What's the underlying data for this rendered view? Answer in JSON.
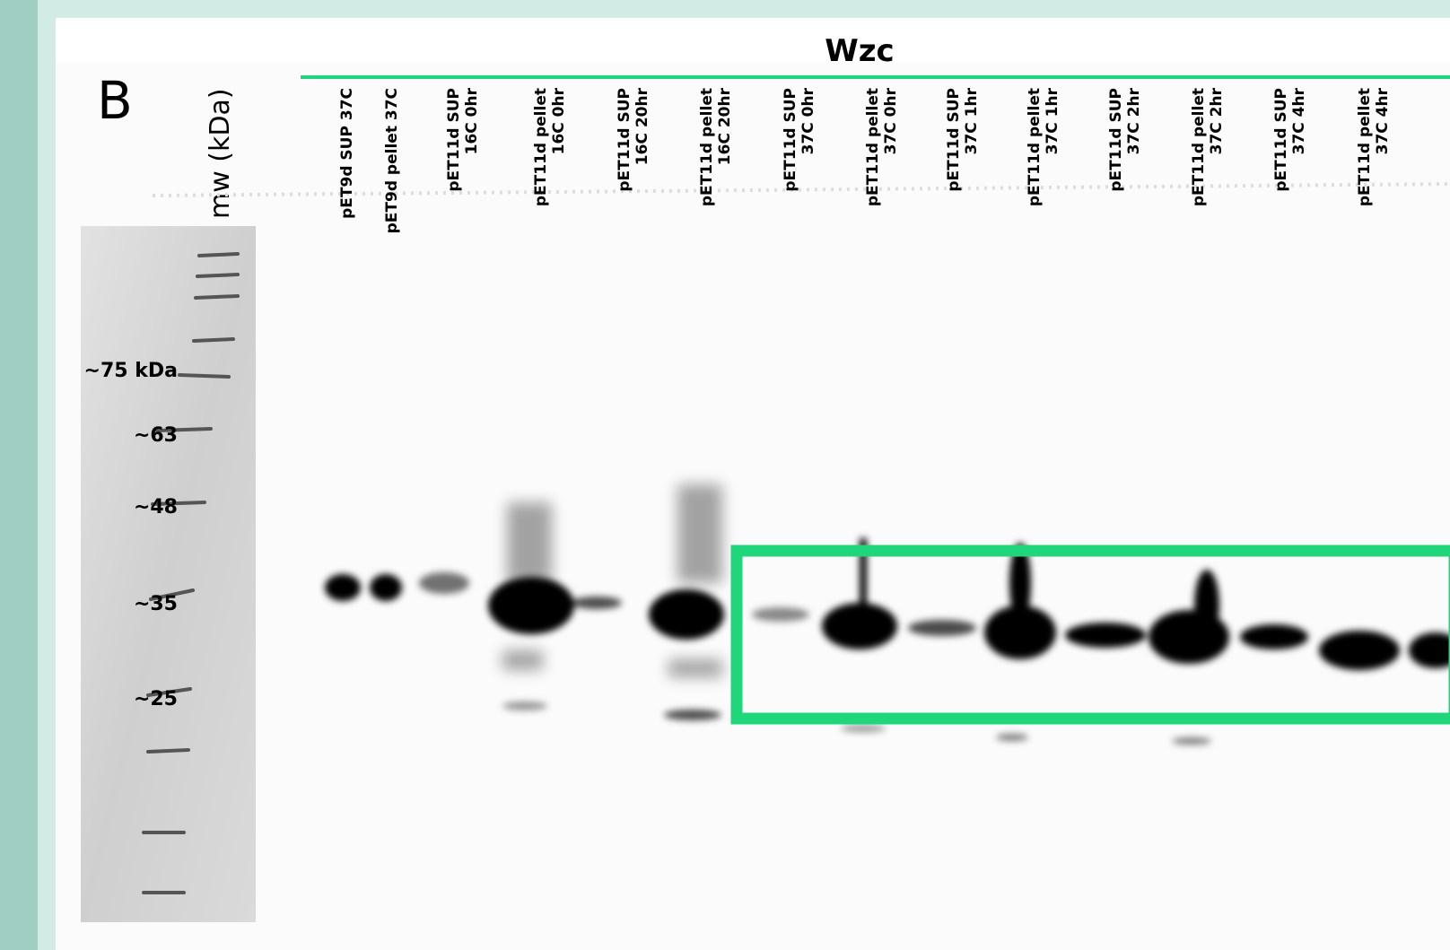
{
  "panel_letter": "B",
  "mw_label": "mw (kDa)",
  "title": "Wzc",
  "markers": [
    "~75 kDa",
    "~63",
    "~48",
    "~35",
    "~25"
  ],
  "lanes": [
    [
      "pET9d SUP 37C"
    ],
    [
      "pET9d pellet 37C"
    ],
    [
      "pET11d SUP",
      "16C 0hr"
    ],
    [
      "pET11d pellet",
      "16C 0hr"
    ],
    [
      "pET11d SUP",
      "16C 20hr"
    ],
    [
      "pET11d pellet",
      "16C 20hr"
    ],
    [
      "pET11d SUP",
      "37C 0hr"
    ],
    [
      "pET11d pellet",
      "37C 0hr"
    ],
    [
      "pET11d SUP",
      "37C 1hr"
    ],
    [
      "pET11d pellet",
      "37C 1hr"
    ],
    [
      "pET11d SUP",
      "37C 2hr"
    ],
    [
      "pET11d pellet",
      "37C 2hr"
    ],
    [
      "pET11d SUP",
      "37C 4hr"
    ],
    [
      "pET11d pellet",
      "37C 4hr"
    ]
  ]
}
